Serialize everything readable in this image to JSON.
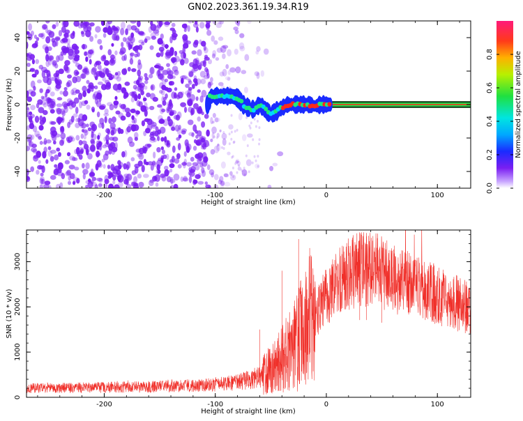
{
  "title": "GN02.2023.361.19.34.R19",
  "chart_data": [
    {
      "type": "heatmap",
      "xlabel": "Height of straight line (km)",
      "ylabel": "Frequency (Hz)",
      "xlim": [
        -270,
        130
      ],
      "ylim": [
        -50,
        50
      ],
      "x_ticks": [
        -200,
        -100,
        0,
        100
      ],
      "y_ticks": [
        -40,
        -20,
        0,
        20,
        40
      ],
      "colorbar": {
        "label": "Normalized spectral amplitude",
        "range": [
          0,
          1
        ],
        "ticks": [
          "0.0",
          "0.2",
          "0.4",
          "0.6",
          "0.8"
        ]
      },
      "trace": {
        "description_points": [
          [
            -105,
            5
          ],
          [
            -95,
            5
          ],
          [
            -85,
            5
          ],
          [
            -80,
            4
          ],
          [
            -75,
            0
          ],
          [
            -70,
            -2
          ],
          [
            -65,
            -3
          ],
          [
            -60,
            0
          ],
          [
            -55,
            -3
          ],
          [
            -50,
            -6
          ],
          [
            -45,
            -4
          ],
          [
            -40,
            -2
          ],
          [
            -35,
            0
          ],
          [
            -25,
            0
          ],
          [
            -15,
            0
          ],
          [
            -10,
            -1
          ],
          [
            -5,
            0
          ],
          [
            0,
            0
          ],
          [
            130,
            0
          ]
        ]
      },
      "colors": {
        "noise": "#7a1ff2",
        "trace_low": "#1a2bff",
        "trace_mid": "#20e87a",
        "trace_high": "#ff2a1a",
        "band_edge": "#000000",
        "band_mid": "#2ad24a"
      }
    },
    {
      "type": "line",
      "xlabel": "Height of straight line (km)",
      "ylabel": "SNR (10 * v/v)",
      "xlim": [
        -270,
        130
      ],
      "ylim": [
        0,
        3700
      ],
      "x_ticks": [
        -200,
        -100,
        0,
        100
      ],
      "y_ticks": [
        0,
        1000,
        2000,
        3000
      ],
      "series": [
        {
          "color": "#f0302a",
          "envelope_x": [
            -270,
            -200,
            -150,
            -100,
            -80,
            -60,
            -45,
            -30,
            -15,
            0,
            15,
            30,
            40,
            60,
            80,
            100,
            130
          ],
          "envelope_y": [
            200,
            220,
            240,
            280,
            330,
            450,
            700,
            1100,
            1700,
            2200,
            2650,
            2850,
            2850,
            2650,
            2450,
            2250,
            1950
          ],
          "spikes": [
            [
              -60,
              1500
            ],
            [
              -40,
              2800
            ],
            [
              -25,
              3500
            ],
            [
              -15,
              3300
            ],
            [
              30,
              3650
            ],
            [
              36,
              3560
            ],
            [
              50,
              3250
            ]
          ]
        }
      ]
    }
  ]
}
